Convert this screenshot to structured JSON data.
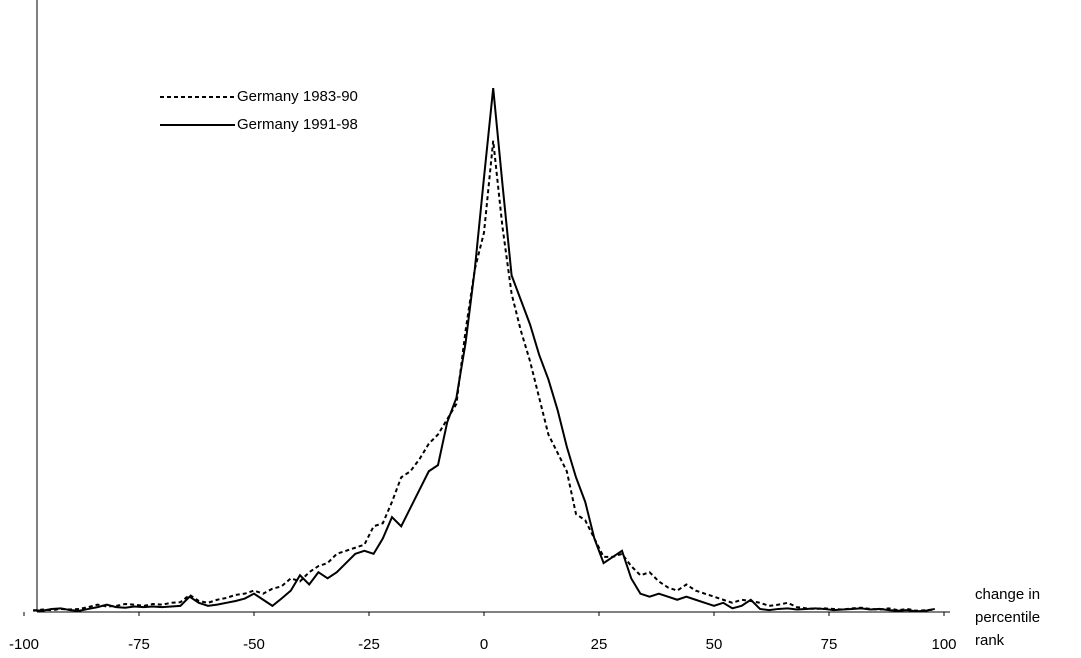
{
  "chart_data": {
    "type": "line",
    "x": [
      -98,
      -96,
      -94,
      -92,
      -90,
      -88,
      -86,
      -84,
      -82,
      -80,
      -78,
      -76,
      -74,
      -72,
      -70,
      -68,
      -66,
      -64,
      -62,
      -60,
      -58,
      -56,
      -54,
      -52,
      -50,
      -48,
      -46,
      -44,
      -42,
      -40,
      -38,
      -36,
      -34,
      -32,
      -30,
      -28,
      -26,
      -24,
      -22,
      -20,
      -18,
      -16,
      -14,
      -12,
      -10,
      -8,
      -6,
      -4,
      -2,
      0,
      2,
      4,
      6,
      8,
      10,
      12,
      14,
      16,
      18,
      20,
      22,
      24,
      26,
      28,
      30,
      32,
      34,
      36,
      38,
      40,
      42,
      44,
      46,
      48,
      50,
      52,
      54,
      56,
      58,
      60,
      62,
      64,
      66,
      68,
      70,
      72,
      74,
      76,
      78,
      80,
      82,
      84,
      86,
      88,
      90,
      92,
      94,
      96,
      98
    ],
    "series": [
      {
        "name": "Germany 1983-90",
        "color": "#000000",
        "linestyle": "dashed",
        "values": [
          0.2,
          0.4,
          0.3,
          0.5,
          0.4,
          0.5,
          0.8,
          1.2,
          0.9,
          1.0,
          1.3,
          1.2,
          1.0,
          1.3,
          1.2,
          1.5,
          1.6,
          2.8,
          1.8,
          1.5,
          2.0,
          2.3,
          2.8,
          3.0,
          3.5,
          3.0,
          3.8,
          4.2,
          5.5,
          5.0,
          6.5,
          7.5,
          8.0,
          9.5,
          10,
          10.5,
          11,
          14,
          14.5,
          18,
          22,
          23,
          25,
          27.5,
          29,
          31.5,
          34,
          46,
          56,
          62,
          77,
          63,
          52,
          46,
          41,
          35,
          29,
          26,
          23,
          16,
          15,
          12,
          9,
          9,
          9.5,
          7.5,
          6.0,
          6.5,
          5.0,
          4.0,
          3.5,
          4.5,
          3.5,
          3.0,
          2.5,
          2.0,
          1.5,
          2.0,
          1.8,
          1.5,
          1.0,
          1.2,
          1.5,
          0.8,
          0.6,
          0.5,
          0.6,
          0.5,
          0.4,
          0.6,
          0.7,
          0.5,
          0.4,
          0.6,
          0.3,
          0.5,
          0.2,
          0.3,
          0.4
        ]
      },
      {
        "name": "Germany 1991-98",
        "color": "#000000",
        "linestyle": "solid",
        "values": [
          0.3,
          0.2,
          0.5,
          0.6,
          0.3,
          0.2,
          0.5,
          0.8,
          1.2,
          0.8,
          0.7,
          0.9,
          0.8,
          0.9,
          0.8,
          0.9,
          1.0,
          2.5,
          1.5,
          1.0,
          1.2,
          1.5,
          1.8,
          2.2,
          3.0,
          2.0,
          1.0,
          2.2,
          3.5,
          6.0,
          4.5,
          6.5,
          5.5,
          6.5,
          8.0,
          9.5,
          10,
          9.5,
          12,
          15.5,
          14,
          17,
          20,
          23,
          24,
          31,
          35,
          44,
          56,
          71,
          85.6,
          70,
          55,
          51,
          47,
          42,
          38,
          33,
          27,
          22,
          18,
          12,
          8,
          9,
          10,
          5.5,
          3.0,
          2.5,
          3.0,
          2.5,
          2.0,
          2.5,
          2.0,
          1.5,
          1.0,
          1.5,
          0.6,
          1.0,
          2.0,
          0.5,
          0.3,
          0.5,
          0.6,
          0.4,
          0.5,
          0.6,
          0.5,
          0.3,
          0.4,
          0.5,
          0.6,
          0.4,
          0.5,
          0.3,
          0.2,
          0.3,
          0.1,
          0.2,
          0.5
        ]
      }
    ],
    "xlim": [
      -100,
      100
    ],
    "xticks": [
      -100,
      -75,
      -50,
      -25,
      0,
      25,
      50,
      75,
      100
    ],
    "ylim": [
      0,
      100
    ],
    "xlabel": [
      "change in",
      "percentile",
      "rank"
    ],
    "legend": "upper-left"
  }
}
